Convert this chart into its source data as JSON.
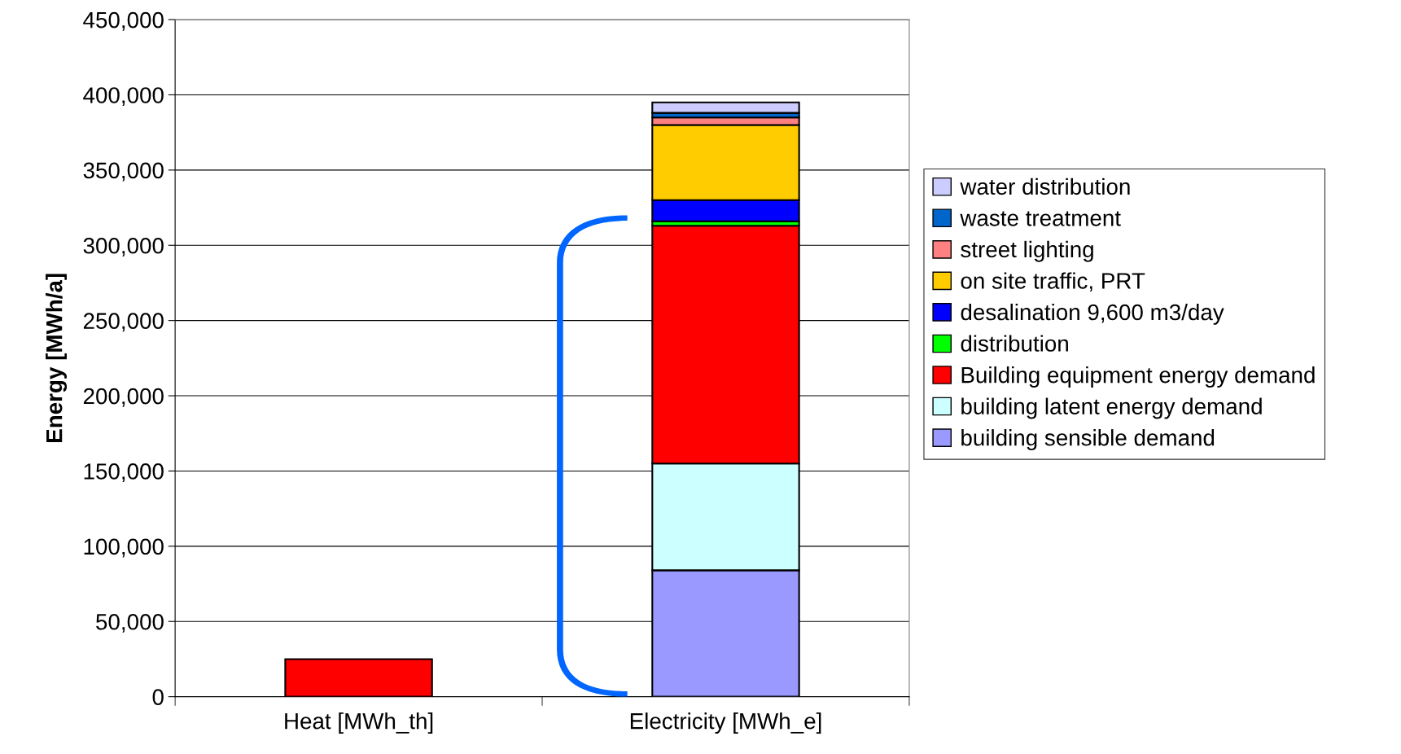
{
  "chart_data": {
    "type": "bar",
    "stacked": true,
    "ylabel": "Energy [MWh/a]",
    "categories": [
      "Heat [MWh_th]",
      "Electricity [MWh_e]"
    ],
    "series": [
      {
        "name": "building sensible demand",
        "color": "#9999ff",
        "values": [
          null,
          84000
        ]
      },
      {
        "name": "building latent energy demand",
        "color": "#ccffff",
        "values": [
          null,
          71000
        ]
      },
      {
        "name": "Building equipment energy demand",
        "color": "#ff0000",
        "values": [
          25000,
          158000
        ]
      },
      {
        "name": "distribution",
        "color": "#00ff00",
        "values": [
          null,
          3000
        ]
      },
      {
        "name": "desalination 9,600 m3/day",
        "color": "#0000ff",
        "values": [
          null,
          14000
        ]
      },
      {
        "name": "on site traffic, PRT",
        "color": "#ffcc00",
        "values": [
          null,
          50000
        ]
      },
      {
        "name": "street lighting",
        "color": "#ff8080",
        "values": [
          null,
          5000
        ]
      },
      {
        "name": "waste treatment",
        "color": "#0066cc",
        "values": [
          null,
          3000
        ]
      },
      {
        "name": "water distribution",
        "color": "#ccccff",
        "values": [
          null,
          7000
        ]
      }
    ],
    "ylim": [
      0,
      450000
    ],
    "yticks": [
      {
        "value": 0,
        "label": "0"
      },
      {
        "value": 50000,
        "label": "50,000"
      },
      {
        "value": 100000,
        "label": "100,000"
      },
      {
        "value": 150000,
        "label": "150,000"
      },
      {
        "value": 200000,
        "label": "200,000"
      },
      {
        "value": 250000,
        "label": "250,000"
      },
      {
        "value": 300000,
        "label": "300,000"
      },
      {
        "value": 350000,
        "label": "350,000"
      },
      {
        "value": 400000,
        "label": "400,000"
      },
      {
        "value": 450000,
        "label": "450,000"
      }
    ],
    "grid": "y",
    "legend": "right"
  }
}
